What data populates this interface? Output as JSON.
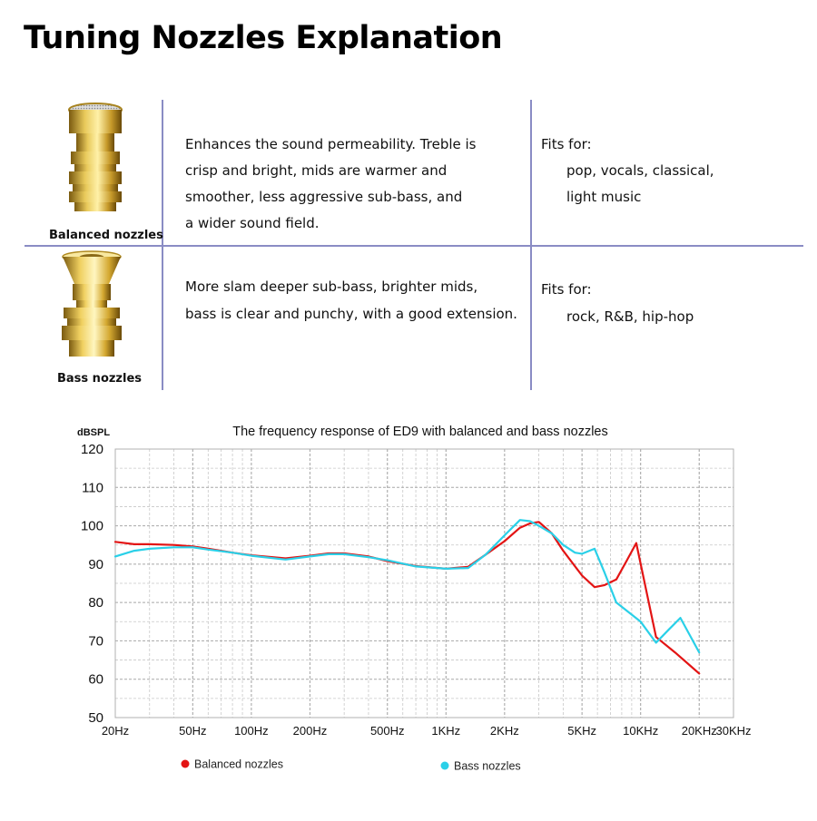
{
  "page": {
    "title": "Tuning Nozzles Explanation"
  },
  "nozzles": [
    {
      "name": "Balanced nozzles",
      "description": [
        "Enhances the sound permeability. Treble is",
        "crisp and bright, mids are warmer and",
        "smoother, less aggressive sub-bass, and",
        "a wider sound field."
      ],
      "fits_label": "Fits for:",
      "fits": [
        "pop, vocals, classical,",
        "light music"
      ]
    },
    {
      "name": "Bass nozzles",
      "description": [
        "More slam deeper sub-bass, brighter mids,",
        "bass is clear and punchy, with a good extension."
      ],
      "fits_label": "Fits for:",
      "fits": [
        "rock, R&B, hip-hop"
      ]
    }
  ],
  "colors": {
    "balanced": "#e31414",
    "bass": "#2ad0e8",
    "divider": "#8a8cc4",
    "gold": "#c9a227"
  },
  "chart_data": {
    "type": "line",
    "title": "The frequency response of ED9 with balanced  and bass nozzles",
    "ylabel": "dBSPL",
    "xlabel": "",
    "x_scale": "log",
    "xlim": [
      20,
      30000
    ],
    "ylim": [
      50,
      120
    ],
    "yticks": [
      50,
      60,
      70,
      80,
      90,
      100,
      110,
      120
    ],
    "xticks": [
      {
        "value": 20,
        "label": "20Hz"
      },
      {
        "value": 50,
        "label": "50Hz"
      },
      {
        "value": 100,
        "label": "100Hz"
      },
      {
        "value": 200,
        "label": "200Hz"
      },
      {
        "value": 500,
        "label": "500Hz"
      },
      {
        "value": 1000,
        "label": "1KHz"
      },
      {
        "value": 2000,
        "label": "2KHz"
      },
      {
        "value": 5000,
        "label": "5KHz"
      },
      {
        "value": 10000,
        "label": "10KHz"
      },
      {
        "value": 20000,
        "label": "20KHz"
      },
      {
        "value": 30000,
        "label": "30KHz"
      }
    ],
    "grid": true,
    "legend_position": "bottom",
    "series": [
      {
        "name": "Balanced nozzles",
        "color": "#e31414",
        "points": [
          [
            20,
            95.8
          ],
          [
            25,
            95.2
          ],
          [
            30,
            95.2
          ],
          [
            40,
            95.0
          ],
          [
            50,
            94.6
          ],
          [
            60,
            94.0
          ],
          [
            80,
            93.0
          ],
          [
            100,
            92.3
          ],
          [
            150,
            91.5
          ],
          [
            200,
            92.2
          ],
          [
            250,
            92.8
          ],
          [
            300,
            92.8
          ],
          [
            400,
            92.0
          ],
          [
            500,
            90.8
          ],
          [
            700,
            89.5
          ],
          [
            1000,
            88.8
          ],
          [
            1300,
            89.3
          ],
          [
            1600,
            92.5
          ],
          [
            2000,
            96.0
          ],
          [
            2400,
            99.5
          ],
          [
            2700,
            100.6
          ],
          [
            3000,
            101.0
          ],
          [
            3500,
            98.0
          ],
          [
            4000,
            93.5
          ],
          [
            5000,
            87.0
          ],
          [
            5800,
            84.0
          ],
          [
            6500,
            84.5
          ],
          [
            7500,
            86.0
          ],
          [
            8500,
            91.0
          ],
          [
            9500,
            95.5
          ],
          [
            12000,
            71.0
          ],
          [
            15000,
            67.0
          ],
          [
            20000,
            61.5
          ]
        ]
      },
      {
        "name": "Bass nozzles",
        "color": "#2ad0e8",
        "points": [
          [
            20,
            92.0
          ],
          [
            25,
            93.5
          ],
          [
            30,
            94.0
          ],
          [
            40,
            94.4
          ],
          [
            50,
            94.4
          ],
          [
            60,
            93.8
          ],
          [
            80,
            93.0
          ],
          [
            100,
            92.2
          ],
          [
            150,
            91.2
          ],
          [
            200,
            92.0
          ],
          [
            250,
            92.6
          ],
          [
            300,
            92.6
          ],
          [
            400,
            91.8
          ],
          [
            500,
            91.0
          ],
          [
            700,
            89.4
          ],
          [
            1000,
            88.8
          ],
          [
            1300,
            89.0
          ],
          [
            1600,
            92.5
          ],
          [
            2000,
            97.5
          ],
          [
            2400,
            101.5
          ],
          [
            2700,
            101.2
          ],
          [
            3000,
            100.0
          ],
          [
            3500,
            98.0
          ],
          [
            4000,
            95.0
          ],
          [
            4600,
            93.0
          ],
          [
            5000,
            92.7
          ],
          [
            5800,
            94.0
          ],
          [
            6500,
            88.0
          ],
          [
            7500,
            80.0
          ],
          [
            10000,
            75.0
          ],
          [
            12000,
            69.5
          ],
          [
            14000,
            73.0
          ],
          [
            16000,
            76.0
          ],
          [
            20000,
            67.0
          ]
        ]
      }
    ]
  }
}
